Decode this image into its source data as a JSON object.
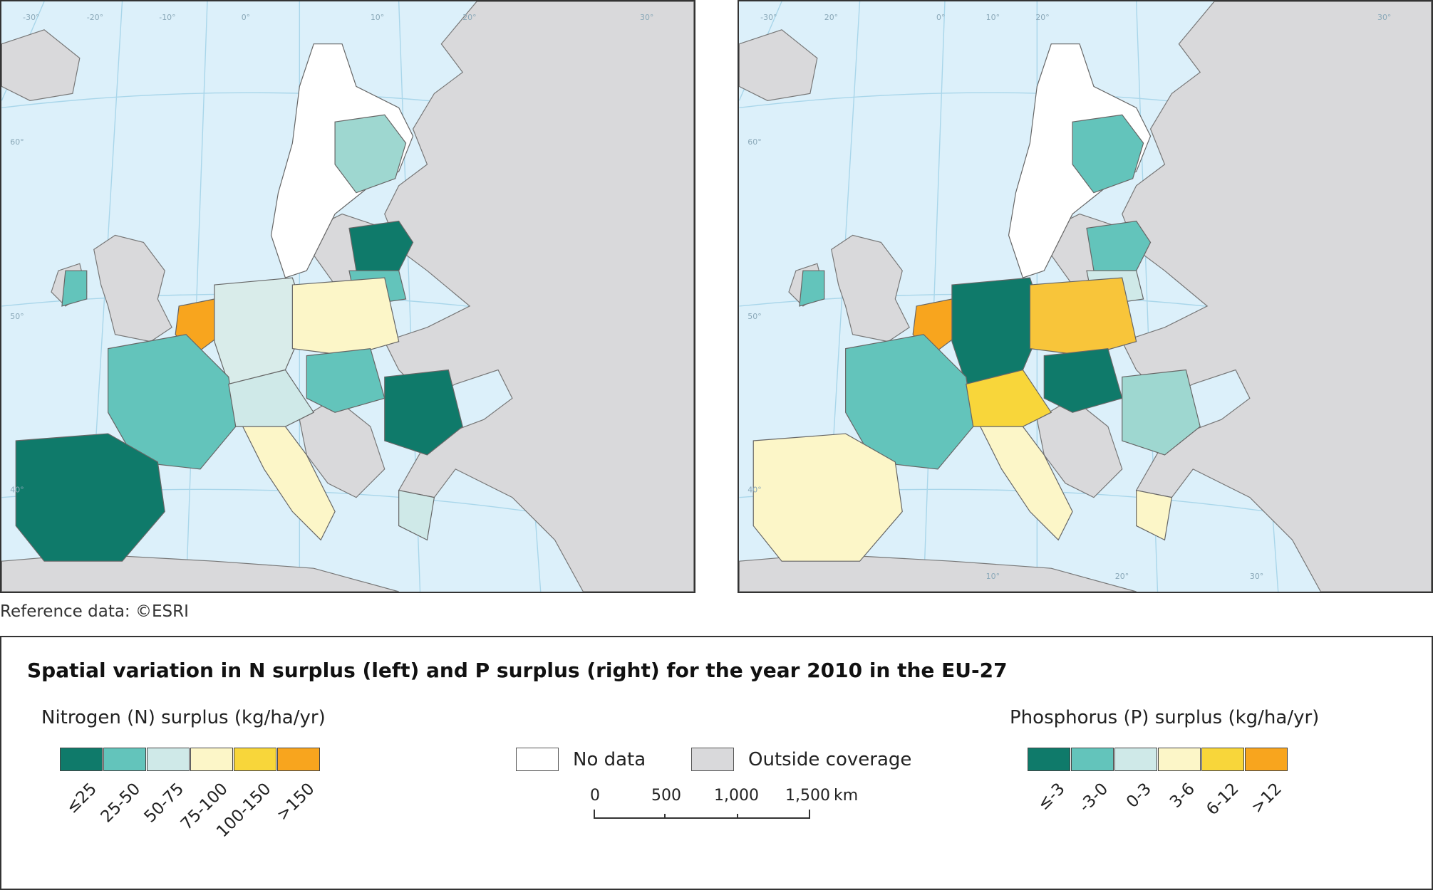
{
  "reference": "Reference data: ©ESRI",
  "title": "Spatial variation in N surplus (left) and P surplus (right) for the year 2010 in the EU-27",
  "legend_left": {
    "title": "Nitrogen (N) surplus (kg/ha/yr)",
    "classes": [
      {
        "label": "≤25",
        "color": "#0f7a6a"
      },
      {
        "label": "25-50",
        "color": "#63c4bb"
      },
      {
        "label": "50-75",
        "color": "#cfe9e8"
      },
      {
        "label": "75-100",
        "color": "#fcf6c8"
      },
      {
        "label": "100-150",
        "color": "#f8d63a"
      },
      {
        "label": ">150",
        "color": "#f8a51e"
      }
    ]
  },
  "legend_right": {
    "title": "Phosphorus (P) surplus (kg/ha/yr)",
    "classes": [
      {
        "label": "≤-3",
        "color": "#0f7a6a"
      },
      {
        "label": "-3-0",
        "color": "#63c4bb"
      },
      {
        "label": "0-3",
        "color": "#cfe9e8"
      },
      {
        "label": "3-6",
        "color": "#fcf6c8"
      },
      {
        "label": "6-12",
        "color": "#f8d63a"
      },
      {
        "label": ">12",
        "color": "#f8a51e"
      }
    ]
  },
  "no_data": {
    "label": "No data",
    "color": "#ffffff"
  },
  "outside": {
    "label": "Outside coverage",
    "color": "#d9d9db"
  },
  "scale": {
    "ticks": [
      "0",
      "500",
      "1,000",
      "1,500"
    ],
    "unit": "km"
  },
  "graticule": {
    "left": [
      "-30°",
      "-20°",
      "-10°",
      "0°",
      "10°",
      "20°",
      "30°",
      "60°",
      "50°",
      "40°"
    ],
    "right": [
      "-30°",
      "20°",
      "0°",
      "10°",
      "20°",
      "30°",
      "60°",
      "50°",
      "40°",
      "10°",
      "20°",
      "30°"
    ]
  }
}
